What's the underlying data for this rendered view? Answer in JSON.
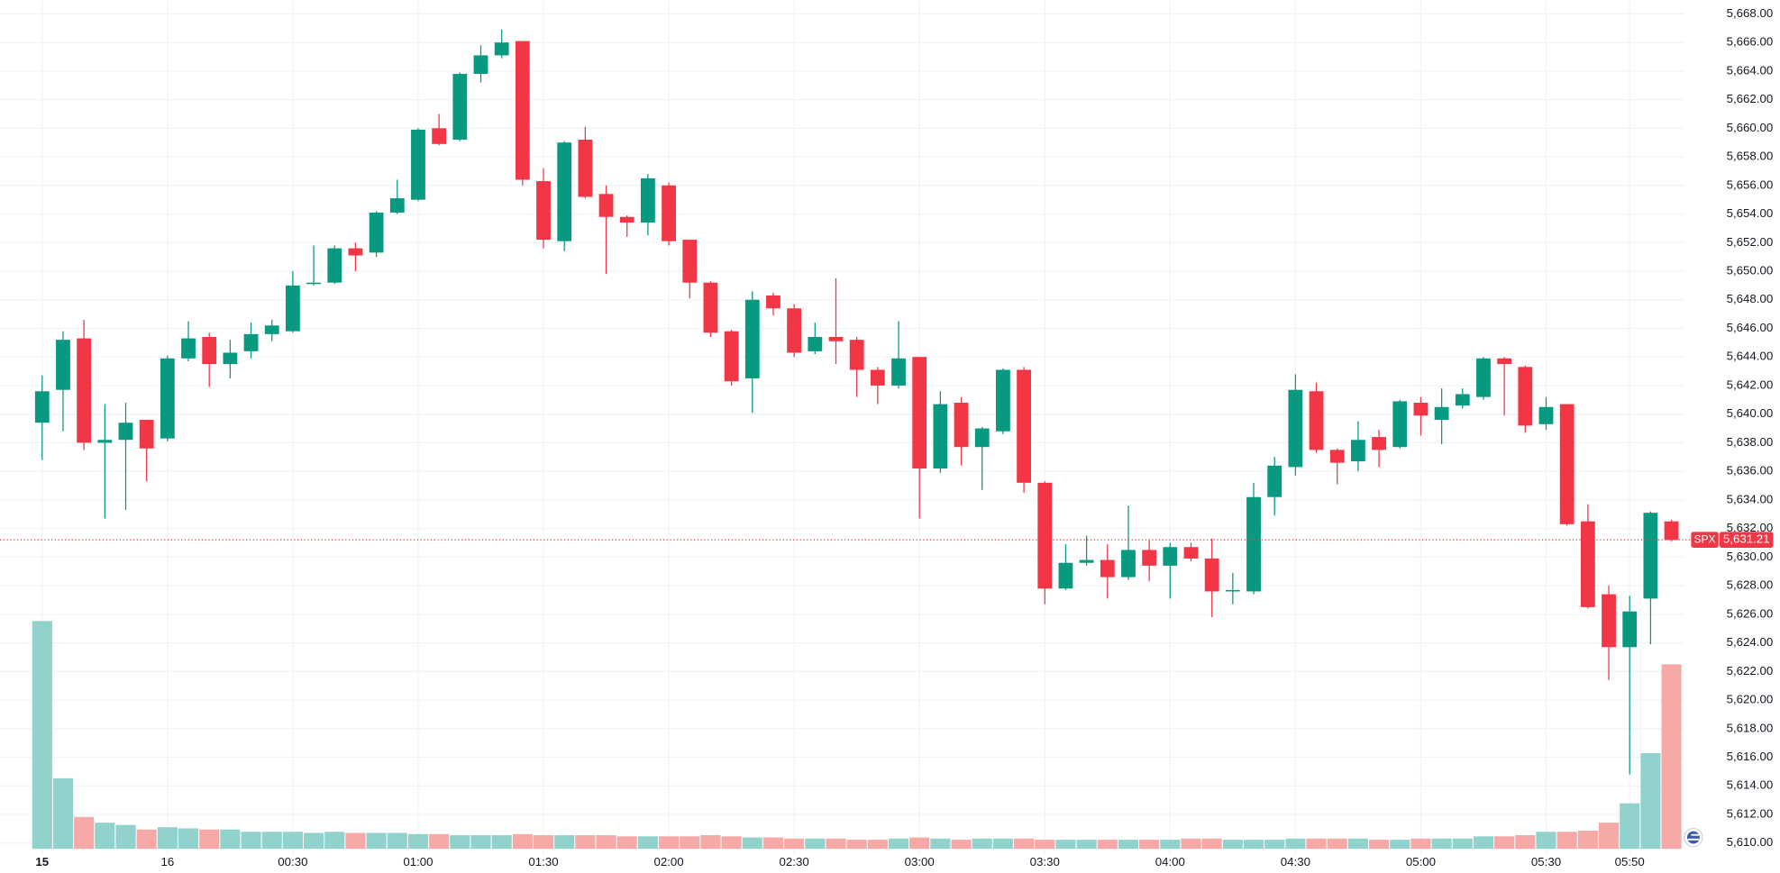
{
  "chart_data": {
    "type": "candlestick",
    "symbol": "SPX",
    "last_price": {
      "value": 5631.21,
      "label": "5,631.21"
    },
    "up_color": "#089981",
    "down_color": "#f23645",
    "up_volume_color": "#92d2cc",
    "down_volume_color": "#f7a9a7",
    "categories": [
      "15",
      null,
      null,
      null,
      null,
      null,
      "16",
      null,
      null,
      null,
      null,
      null,
      "00:30",
      null,
      null,
      null,
      null,
      null,
      "01:00",
      null,
      null,
      null,
      null,
      null,
      "01:30",
      null,
      null,
      null,
      null,
      null,
      "02:00",
      null,
      null,
      null,
      null,
      null,
      "02:30",
      null,
      null,
      null,
      null,
      null,
      "03:00",
      null,
      null,
      null,
      null,
      null,
      "03:30",
      null,
      null,
      null,
      null,
      null,
      "04:00",
      null,
      null,
      null,
      null,
      null,
      "04:30",
      null,
      null,
      null,
      null,
      null,
      "05:00",
      null,
      null,
      null,
      null,
      null,
      "05:30",
      null,
      null,
      null,
      "05:50",
      null,
      null
    ],
    "open": [
      5639.4,
      5641.7,
      5645.3,
      5638.0,
      5638.2,
      5639.6,
      5638.3,
      5643.9,
      5645.4,
      5643.5,
      5644.4,
      5645.6,
      5645.8,
      5649.1,
      5649.2,
      5651.6,
      5651.3,
      5654.1,
      5655.0,
      5660.0,
      5659.2,
      5663.8,
      5665.1,
      5666.1,
      5656.3,
      5652.1,
      5659.2,
      5655.4,
      5653.8,
      5653.4,
      5656.0,
      5652.2,
      5649.2,
      5645.8,
      5642.5,
      5648.3,
      5647.4,
      5644.4,
      5645.4,
      5645.2,
      5643.1,
      5642.0,
      5644.0,
      5636.2,
      5640.8,
      5637.7,
      5638.8,
      5643.1,
      5635.2,
      5627.8,
      5629.6,
      5629.8,
      5628.6,
      5630.5,
      5629.4,
      5630.7,
      5629.9,
      5627.6,
      5627.6,
      5634.2,
      5636.3,
      5641.6,
      5637.5,
      5636.7,
      5638.4,
      5637.7,
      5640.8,
      5639.6,
      5640.6,
      5641.2,
      5643.9,
      5643.3,
      5639.3,
      5640.7,
      5632.5,
      5627.4,
      5623.7,
      5627.1,
      5632.5
    ],
    "high": [
      5642.7,
      5645.8,
      5646.6,
      5640.7,
      5640.8,
      5639.6,
      5644.1,
      5646.5,
      5645.7,
      5645.2,
      5646.4,
      5646.6,
      5650.0,
      5651.8,
      5651.8,
      5652.0,
      5654.2,
      5656.4,
      5660.0,
      5661.0,
      5663.9,
      5665.8,
      5666.9,
      5666.1,
      5657.2,
      5659.1,
      5660.1,
      5656.0,
      5653.9,
      5656.8,
      5656.2,
      5652.2,
      5649.3,
      5645.9,
      5648.6,
      5648.5,
      5647.7,
      5646.4,
      5649.5,
      5645.4,
      5643.3,
      5646.5,
      5644.0,
      5641.6,
      5641.2,
      5639.1,
      5643.2,
      5643.3,
      5635.3,
      5630.9,
      5631.5,
      5630.9,
      5633.6,
      5631.2,
      5631.0,
      5631.0,
      5631.3,
      5628.9,
      5635.2,
      5637.0,
      5642.8,
      5642.2,
      5637.6,
      5639.5,
      5638.9,
      5641.0,
      5641.2,
      5641.8,
      5641.8,
      5644.0,
      5644.0,
      5643.4,
      5641.2,
      5640.7,
      5633.7,
      5628.0,
      5627.3,
      5633.2,
      5632.6
    ],
    "low": [
      5636.8,
      5638.8,
      5637.5,
      5632.7,
      5633.3,
      5635.3,
      5638.1,
      5643.7,
      5641.9,
      5642.5,
      5643.9,
      5645.1,
      5645.7,
      5649.0,
      5649.1,
      5650.0,
      5651.0,
      5654.0,
      5654.9,
      5658.8,
      5659.1,
      5663.2,
      5664.9,
      5656.0,
      5651.6,
      5651.4,
      5655.1,
      5649.8,
      5652.4,
      5652.5,
      5651.8,
      5648.1,
      5645.4,
      5642.0,
      5640.1,
      5646.9,
      5644.0,
      5644.2,
      5643.5,
      5641.2,
      5640.7,
      5641.8,
      5632.7,
      5635.9,
      5636.4,
      5634.7,
      5638.6,
      5634.5,
      5626.7,
      5627.7,
      5629.4,
      5627.1,
      5628.4,
      5628.3,
      5627.1,
      5629.7,
      5625.8,
      5626.7,
      5627.4,
      5632.9,
      5635.7,
      5637.3,
      5635.1,
      5636.0,
      5636.3,
      5637.6,
      5638.5,
      5637.9,
      5640.4,
      5641.0,
      5639.9,
      5638.7,
      5638.9,
      5632.2,
      5626.4,
      5621.4,
      5614.8,
      5623.9,
      5631.1
    ],
    "close": [
      5641.6,
      5645.2,
      5638.0,
      5638.2,
      5639.4,
      5637.6,
      5643.9,
      5645.3,
      5643.5,
      5644.3,
      5645.6,
      5646.2,
      5649.0,
      5649.2,
      5651.6,
      5651.1,
      5654.1,
      5655.1,
      5659.9,
      5658.9,
      5663.8,
      5665.1,
      5666.0,
      5656.4,
      5652.2,
      5659.0,
      5655.2,
      5653.8,
      5653.4,
      5656.5,
      5652.1,
      5649.2,
      5645.7,
      5642.3,
      5648.0,
      5647.4,
      5644.3,
      5645.4,
      5645.1,
      5643.1,
      5642.0,
      5643.9,
      5636.2,
      5640.7,
      5637.7,
      5639.0,
      5643.1,
      5635.2,
      5627.8,
      5629.6,
      5629.8,
      5628.6,
      5630.5,
      5629.4,
      5630.7,
      5629.9,
      5627.6,
      5627.7,
      5634.2,
      5636.4,
      5641.7,
      5637.5,
      5636.6,
      5638.2,
      5637.5,
      5640.9,
      5639.9,
      5640.5,
      5641.4,
      5643.9,
      5643.5,
      5639.2,
      5640.5,
      5632.3,
      5626.5,
      5623.7,
      5626.2,
      5633.1,
      5631.2
    ],
    "volume": [
      200,
      62,
      28,
      23,
      21,
      17,
      19,
      18,
      17,
      17,
      15,
      15,
      15,
      14,
      15,
      14,
      14,
      14,
      13,
      13,
      12,
      12,
      12,
      13,
      12,
      12,
      12,
      12,
      11,
      11,
      11,
      11,
      12,
      11,
      10,
      10,
      9,
      9,
      9,
      8,
      8,
      9,
      10,
      9,
      8,
      9,
      9,
      9,
      8,
      8,
      8,
      8,
      8,
      8,
      8,
      9,
      9,
      8,
      8,
      8,
      9,
      9,
      9,
      9,
      8,
      8,
      9,
      9,
      9,
      11,
      11,
      12,
      15,
      15,
      16,
      23,
      40,
      84,
      162
    ],
    "ylim": [
      5609.2,
      5668.9
    ],
    "yticks": [
      {
        "value": 5610,
        "label": "5,610.00"
      },
      {
        "value": 5612,
        "label": "5,612.00"
      },
      {
        "value": 5614,
        "label": "5,614.00"
      },
      {
        "value": 5616,
        "label": "5,616.00"
      },
      {
        "value": 5618,
        "label": "5,618.00"
      },
      {
        "value": 5620,
        "label": "5,620.00"
      },
      {
        "value": 5622,
        "label": "5,622.00"
      },
      {
        "value": 5624,
        "label": "5,624.00"
      },
      {
        "value": 5626,
        "label": "5,626.00"
      },
      {
        "value": 5628,
        "label": "5,628.00"
      },
      {
        "value": 5630,
        "label": "5,630.00"
      },
      {
        "value": 5632,
        "label": "5,632.00"
      },
      {
        "value": 5634,
        "label": "5,634.00"
      },
      {
        "value": 5636,
        "label": "5,636.00"
      },
      {
        "value": 5638,
        "label": "5,638.00"
      },
      {
        "value": 5640,
        "label": "5,640.00"
      },
      {
        "value": 5642,
        "label": "5,642.00"
      },
      {
        "value": 5644,
        "label": "5,644.00"
      },
      {
        "value": 5646,
        "label": "5,646.00"
      },
      {
        "value": 5648,
        "label": "5,648.00"
      },
      {
        "value": 5650,
        "label": "5,650.00"
      },
      {
        "value": 5652,
        "label": "5,652.00"
      },
      {
        "value": 5654,
        "label": "5,654.00"
      },
      {
        "value": 5656,
        "label": "5,656.00"
      },
      {
        "value": 5658,
        "label": "5,658.00"
      },
      {
        "value": 5660,
        "label": "5,660.00"
      },
      {
        "value": 5662,
        "label": "5,662.00"
      },
      {
        "value": 5664,
        "label": "5,664.00"
      },
      {
        "value": 5666,
        "label": "5,666.00"
      },
      {
        "value": 5668,
        "label": "5,668.00"
      }
    ],
    "grid": true
  }
}
